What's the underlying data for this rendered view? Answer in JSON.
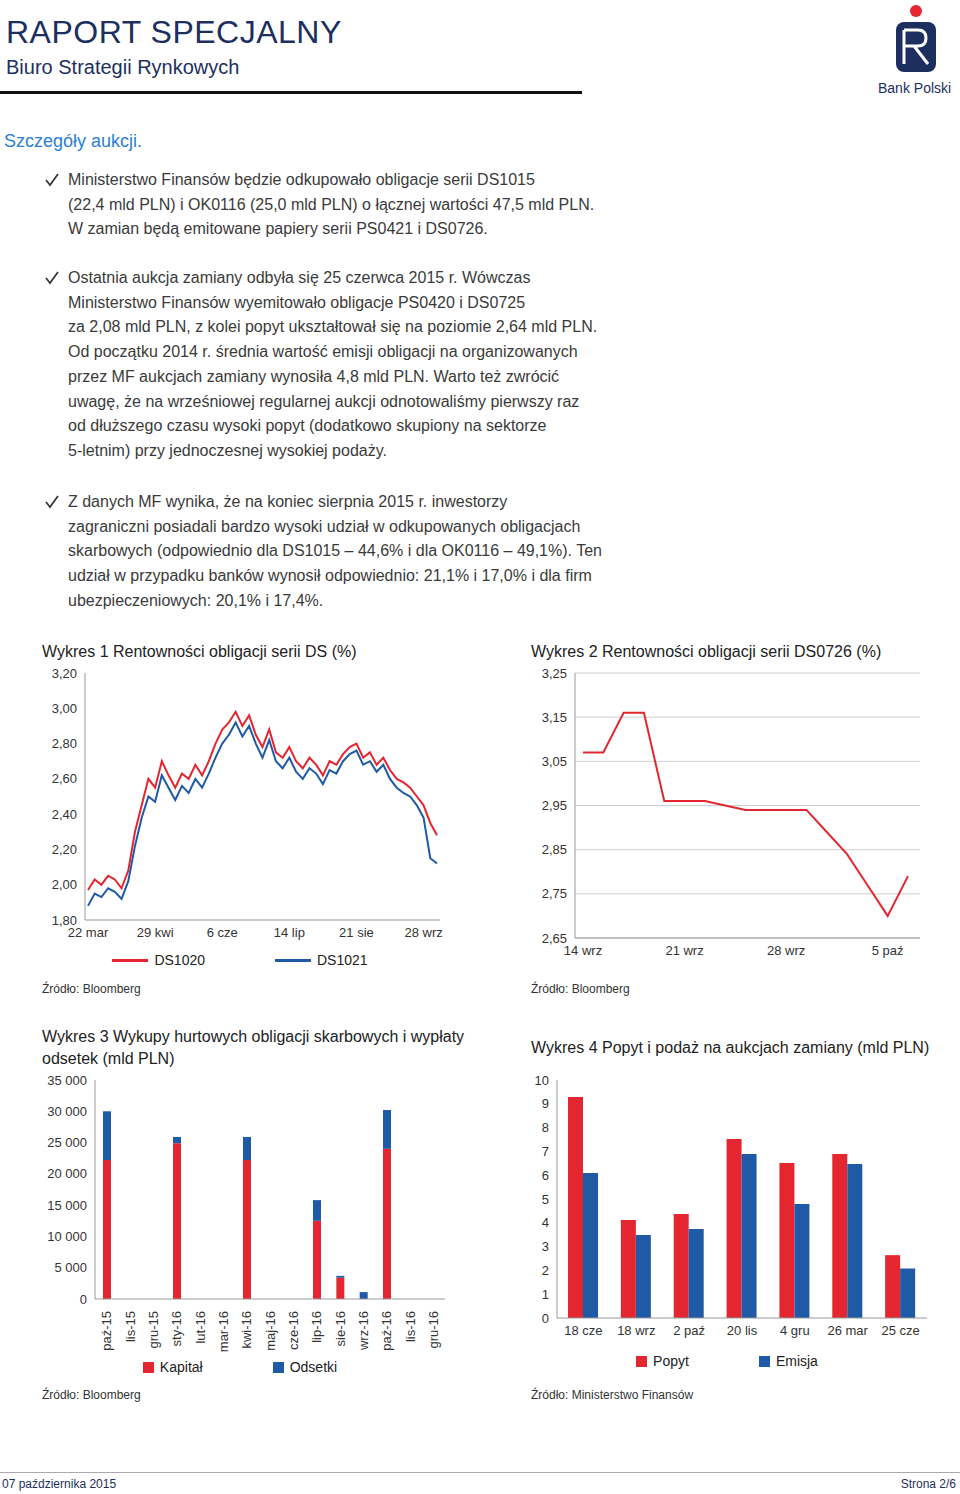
{
  "header": {
    "title": "RAPORT SPECJALNY",
    "subtitle": "Biuro Strategii Rynkowych",
    "logo_text": "Bank Polski"
  },
  "section_title": "Szczegóły aukcji.",
  "bullets": [
    [
      "Ministerstwo Finansów będzie odkupowało obligacje serii DS1015",
      "(22,4 mld PLN) i OK0116 (25,0 mld PLN) o łącznej wartości 47,5 mld PLN.",
      "W zamian będą emitowane papiery serii PS0421 i DS0726."
    ],
    [
      "Ostatnia aukcja zamiany odbyła się 25 czerwca 2015 r. Wówczas",
      "Ministerstwo Finansów wyemitowało obligacje PS0420 i DS0725",
      "za 2,08 mld PLN, z kolei popyt ukształtował się na poziomie 2,64 mld PLN.",
      "Od początku 2014 r. średnia wartość emisji obligacji na organizowanych",
      "przez MF aukcjach zamiany wynosiła 4,8 mld PLN. Warto też zwrócić",
      "uwagę, że na wrześniowej regularnej aukcji odnotowaliśmy pierwszy raz",
      "od dłuższego czasu wysoki popyt (dodatkowo skupiony na sektorze",
      "5-letnim) przy jednoczesnej wysokiej podaży."
    ],
    [
      "Z danych MF wynika, że na koniec sierpnia 2015 r. inwestorzy",
      "zagraniczni posiadali bardzo wysoki udział w odkupowanych obligacjach",
      "skarbowych (odpowiednio dla DS1015 – 44,6% i dla OK0116 – 49,1%). Ten",
      "udział w przypadku banków wynosił odpowiednio: 21,1% i 17,0% i dla firm",
      "ubezpieczeniowych: 20,1% i 17,4%."
    ]
  ],
  "chart_data": [
    {
      "type": "line",
      "title": "Wykres 1 Rentowności obligacji serii DS (%)",
      "source": "Źródło: Bloomberg",
      "categories": [
        "22 mar",
        null,
        null,
        null,
        null,
        null,
        null,
        null,
        null,
        null,
        "29 kwi",
        null,
        null,
        null,
        null,
        null,
        null,
        null,
        null,
        null,
        "6 cze",
        null,
        null,
        null,
        null,
        null,
        null,
        null,
        null,
        null,
        "14 lip",
        null,
        null,
        null,
        null,
        null,
        null,
        null,
        null,
        null,
        "21 sie",
        null,
        null,
        null,
        null,
        null,
        null,
        null,
        null,
        null,
        "28 wrz",
        null,
        null
      ],
      "series": [
        {
          "name": "DS1020",
          "color": "#e3262f",
          "values": [
            1.97,
            2.03,
            2.0,
            2.05,
            2.03,
            1.98,
            2.08,
            2.3,
            2.45,
            2.6,
            2.55,
            2.7,
            2.62,
            2.55,
            2.63,
            2.6,
            2.68,
            2.62,
            2.7,
            2.8,
            2.88,
            2.92,
            2.98,
            2.9,
            2.96,
            2.85,
            2.78,
            2.88,
            2.75,
            2.72,
            2.78,
            2.7,
            2.66,
            2.72,
            2.68,
            2.62,
            2.7,
            2.68,
            2.74,
            2.78,
            2.8,
            2.72,
            2.75,
            2.68,
            2.72,
            2.65,
            2.6,
            2.58,
            2.55,
            2.5,
            2.45,
            2.35,
            2.28
          ]
        },
        {
          "name": "DS1021",
          "color": "#1f5aa6",
          "values": [
            1.88,
            1.95,
            1.93,
            1.98,
            1.96,
            1.92,
            2.02,
            2.22,
            2.38,
            2.5,
            2.47,
            2.62,
            2.55,
            2.48,
            2.56,
            2.52,
            2.6,
            2.55,
            2.63,
            2.72,
            2.8,
            2.85,
            2.92,
            2.84,
            2.9,
            2.8,
            2.72,
            2.82,
            2.7,
            2.66,
            2.72,
            2.64,
            2.6,
            2.66,
            2.63,
            2.57,
            2.65,
            2.63,
            2.7,
            2.74,
            2.76,
            2.68,
            2.7,
            2.64,
            2.68,
            2.6,
            2.55,
            2.52,
            2.5,
            2.45,
            2.38,
            2.15,
            2.12
          ]
        }
      ],
      "ylim": [
        1.8,
        3.2
      ],
      "yticks": [
        {
          "value": 1.8,
          "label": "1,80"
        },
        {
          "value": 2.0,
          "label": "2,00"
        },
        {
          "value": 2.2,
          "label": "2,20"
        },
        {
          "value": 2.4,
          "label": "2,40"
        },
        {
          "value": 2.6,
          "label": "2,60"
        },
        {
          "value": 2.8,
          "label": "2,80"
        },
        {
          "value": 3.0,
          "label": "3,00"
        },
        {
          "value": 3.2,
          "label": "3,20"
        }
      ],
      "grid": false,
      "legend": "bottom"
    },
    {
      "type": "line",
      "title": "Wykres 2 Rentowności obligacji serii DS0726 (%)",
      "source": "Źródło: Bloomberg",
      "categories": [
        "14 wrz",
        null,
        null,
        null,
        null,
        "21 wrz",
        null,
        null,
        null,
        null,
        "28 wrz",
        null,
        null,
        null,
        null,
        "5 paź",
        null
      ],
      "values": [
        3.07,
        3.07,
        3.16,
        3.16,
        2.96,
        2.96,
        2.96,
        2.95,
        2.94,
        2.94,
        2.94,
        2.94,
        2.89,
        2.84,
        2.77,
        2.7,
        2.79
      ],
      "color": "#e3262f",
      "ylim": [
        2.65,
        3.25
      ],
      "yticks": [
        {
          "value": 2.65,
          "label": "2,65"
        },
        {
          "value": 2.75,
          "label": "2,75"
        },
        {
          "value": 2.85,
          "label": "2,85"
        },
        {
          "value": 2.95,
          "label": "2,95"
        },
        {
          "value": 3.05,
          "label": "3,05"
        },
        {
          "value": 3.15,
          "label": "3,15"
        },
        {
          "value": 3.25,
          "label": "3,25"
        }
      ],
      "grid": true
    },
    {
      "type": "bar",
      "title": "Wykres 3 Wykupy hurtowych obligacji skarbowych i wypłaty odsetek (mld PLN)",
      "source": "Źródło: Bloomberg",
      "categories": [
        "paź-15",
        "lis-15",
        "gru-15",
        "sty-16",
        "lut-16",
        "mar-16",
        "kwi-16",
        "maj-16",
        "cze-16",
        "lip-16",
        "sie-16",
        "wrz-16",
        "paź-16",
        "lis-16",
        "gru-16"
      ],
      "series": [
        {
          "name": "Kapitał",
          "color": "#e3262f",
          "values": [
            22200,
            0,
            0,
            24900,
            0,
            0,
            22200,
            0,
            0,
            12500,
            3400,
            0,
            24000,
            0,
            0
          ]
        },
        {
          "name": "Odsetki",
          "color": "#1f5aa6",
          "values": [
            7800,
            0,
            0,
            1000,
            0,
            0,
            3700,
            0,
            0,
            3300,
            300,
            1100,
            6200,
            0,
            0
          ]
        }
      ],
      "stacked": true,
      "ylim": [
        0,
        35000
      ],
      "yticks": [
        0,
        {
          "value": 5000,
          "label": "5 000"
        },
        {
          "value": 10000,
          "label": "10 000"
        },
        {
          "value": 15000,
          "label": "15 000"
        },
        {
          "value": 20000,
          "label": "20 000"
        },
        {
          "value": 25000,
          "label": "25 000"
        },
        {
          "value": 30000,
          "label": "30 000"
        },
        {
          "value": 35000,
          "label": "35 000"
        }
      ],
      "grid": false,
      "legend": "bottom"
    },
    {
      "type": "bar",
      "title": "Wykres 4 Popyt i podaż na aukcjach zamiany (mld PLN)",
      "source": "Źródło: Ministerstwo Finansów",
      "categories": [
        "18 cze",
        "18 wrz",
        "2 paź",
        "20 lis",
        "4 gru",
        "26 mar",
        "25 cze"
      ],
      "series": [
        {
          "name": "Popyt",
          "color": "#e3262f",
          "values": [
            9.29,
            4.12,
            4.37,
            7.52,
            6.51,
            6.89,
            2.64
          ]
        },
        {
          "name": "Emisja",
          "color": "#1f5aa6",
          "values": [
            6.09,
            3.49,
            3.74,
            6.89,
            4.79,
            6.47,
            2.08
          ]
        }
      ],
      "ylim": [
        0,
        10
      ],
      "yticks": [
        0,
        1,
        2,
        3,
        4,
        5,
        6,
        7,
        8,
        9,
        10
      ],
      "grid": false,
      "legend": "bottom"
    }
  ],
  "footer": {
    "date": "07 października 2015",
    "page": "Strona 2/6"
  }
}
